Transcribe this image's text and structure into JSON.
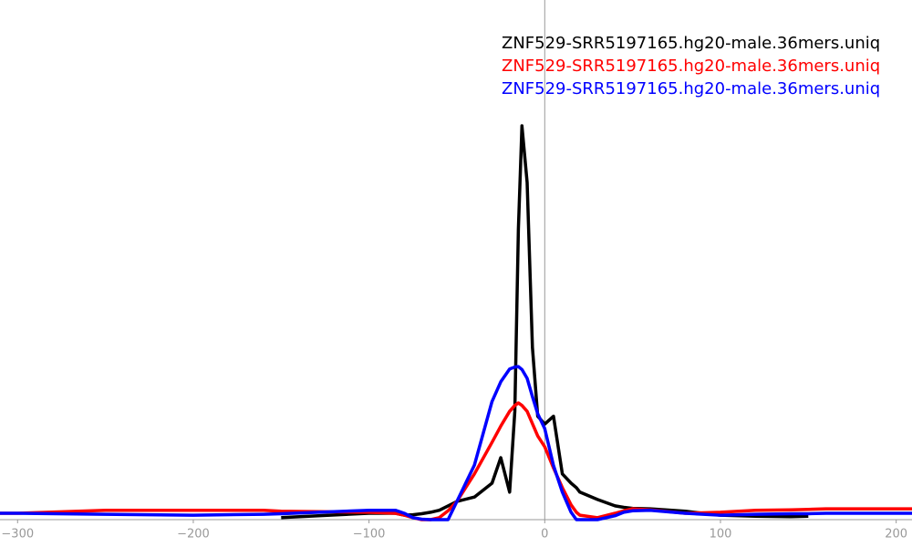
{
  "chart_data": {
    "type": "line",
    "x": [
      -310,
      -300,
      -250,
      -200,
      -160,
      -150,
      -100,
      -85,
      -80,
      -75,
      -70,
      -65,
      -60,
      -55,
      -50,
      -40,
      -30,
      -25,
      -20,
      -17,
      -15,
      -13,
      -10,
      -7,
      -4,
      0,
      5,
      10,
      15,
      18,
      20,
      30,
      40,
      45,
      50,
      60,
      80,
      100,
      120,
      140,
      150,
      160,
      200,
      209
    ],
    "series": [
      {
        "name": "ZNF529-SRR5197165.hg20-male.36mers.uniq",
        "color": "#000000",
        "values": [
          null,
          null,
          null,
          null,
          null,
          0.4,
          1.3,
          1.3,
          0.9,
          1.0,
          1.2,
          1.5,
          1.9,
          2.8,
          3.7,
          4.6,
          7.4,
          12.6,
          5.6,
          22,
          59,
          80,
          68.5,
          35,
          21,
          19.4,
          21,
          9.3,
          7.4,
          6.5,
          5.6,
          4.1,
          2.8,
          2.5,
          2.3,
          2.2,
          1.7,
          0.9,
          0.7,
          0.6,
          0.7,
          null,
          null,
          null
        ]
      },
      {
        "name": "ZNF529-SRR5197165.hg20-male.36mers.uniq",
        "color": "#ff0000",
        "values": [
          1.3,
          1.3,
          1.9,
          1.9,
          1.9,
          1.7,
          1.5,
          1.3,
          0.9,
          0.4,
          0,
          0,
          0.4,
          1.8,
          3.7,
          9.3,
          15.7,
          19,
          22,
          23.2,
          23.7,
          23.2,
          22,
          19.5,
          17,
          14.8,
          10.5,
          6.5,
          3,
          1.5,
          0.9,
          0.4,
          1.3,
          1.8,
          2.2,
          2.0,
          1.3,
          1.5,
          1.9,
          2.0,
          2.1,
          2.2,
          2.2,
          2.2
        ]
      },
      {
        "name": "ZNF529-SRR5197165.hg20-male.36mers.uniq",
        "color": "#0000ff",
        "values": [
          1.3,
          1.3,
          1.1,
          0.9,
          1.1,
          1.2,
          1.9,
          1.9,
          1.3,
          0.4,
          0.1,
          0,
          0,
          0,
          3.7,
          11.1,
          24,
          28,
          30.6,
          31,
          31.1,
          30.5,
          28.7,
          25,
          21.5,
          18.5,
          11,
          5.6,
          1.5,
          0,
          0,
          0,
          0.8,
          1.5,
          1.8,
          1.9,
          1.3,
          0.9,
          1.1,
          1.2,
          1.2,
          1.3,
          1.3,
          1.3
        ]
      }
    ],
    "xlim": [
      -310,
      209
    ],
    "ylim": [
      0,
      100
    ],
    "xticks": [
      {
        "value": -300,
        "label": "−300"
      },
      {
        "value": -200,
        "label": "−200"
      },
      {
        "value": -100,
        "label": "−100"
      },
      0,
      100,
      200
    ],
    "legend": "upper right"
  }
}
